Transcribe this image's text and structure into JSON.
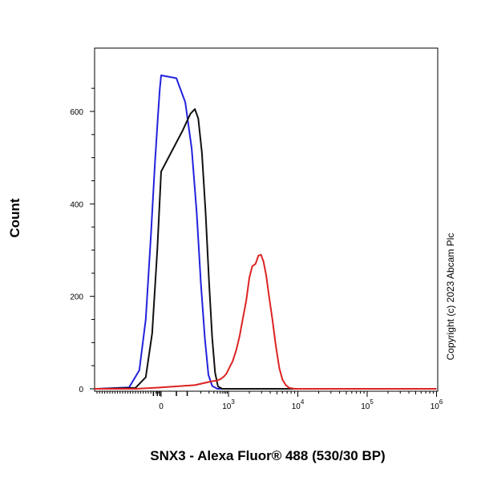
{
  "chart_data": {
    "type": "line",
    "title": "",
    "xlabel": "SNX3 - Alexa Fluor® 488 (530/30 BP)",
    "ylabel": "Count",
    "x_scale": "biexponential",
    "ylim": [
      0,
      720
    ],
    "y_ticks": [
      {
        "value": 0,
        "label": "0"
      },
      {
        "value": 200,
        "label": "200"
      },
      {
        "value": 400,
        "label": "400"
      },
      {
        "value": 600,
        "label": "600"
      }
    ],
    "x_ticks": [
      {
        "value": 0,
        "label_base": "0",
        "label_exp": ""
      },
      {
        "value": 1000,
        "label_base": "10",
        "label_exp": "3"
      },
      {
        "value": 10000,
        "label_base": "10",
        "label_exp": "4"
      },
      {
        "value": 100000,
        "label_base": "10",
        "label_exp": "5"
      },
      {
        "value": 1000000,
        "label_base": "10",
        "label_exp": "6"
      }
    ],
    "grid": false,
    "legend": "none",
    "series": [
      {
        "color": "#2222dd",
        "points": [
          [
            -1000,
            0
          ],
          [
            -500,
            0
          ],
          [
            -250,
            3
          ],
          [
            -170,
            40
          ],
          [
            -120,
            150
          ],
          [
            -80,
            330
          ],
          [
            -50,
            480
          ],
          [
            -25,
            590
          ],
          [
            -10,
            650
          ],
          [
            0,
            678
          ],
          [
            10,
            672
          ],
          [
            25,
            620
          ],
          [
            45,
            520
          ],
          [
            70,
            380
          ],
          [
            100,
            230
          ],
          [
            140,
            110
          ],
          [
            190,
            30
          ],
          [
            260,
            6
          ],
          [
            400,
            0
          ],
          [
            700,
            0
          ],
          [
            1000000,
            0
          ]
        ]
      },
      {
        "color": "#111111",
        "points": [
          [
            -1000,
            0
          ],
          [
            -500,
            0
          ],
          [
            -200,
            2
          ],
          [
            -120,
            25
          ],
          [
            -70,
            120
          ],
          [
            -30,
            300
          ],
          [
            0,
            470
          ],
          [
            20,
            560
          ],
          [
            40,
            595
          ],
          [
            60,
            605
          ],
          [
            80,
            585
          ],
          [
            110,
            510
          ],
          [
            150,
            380
          ],
          [
            200,
            230
          ],
          [
            260,
            110
          ],
          [
            330,
            35
          ],
          [
            420,
            5
          ],
          [
            600,
            0
          ],
          [
            1000000,
            0
          ]
        ]
      },
      {
        "color": "#dd2222",
        "points": [
          [
            -1000,
            0
          ],
          [
            -200,
            0
          ],
          [
            -50,
            2
          ],
          [
            0,
            3
          ],
          [
            60,
            8
          ],
          [
            120,
            12
          ],
          [
            200,
            15
          ],
          [
            300,
            17
          ],
          [
            400,
            18
          ],
          [
            550,
            22
          ],
          [
            700,
            27
          ],
          [
            850,
            33
          ],
          [
            1000,
            42
          ],
          [
            1150,
            60
          ],
          [
            1300,
            85
          ],
          [
            1450,
            115
          ],
          [
            1600,
            150
          ],
          [
            1800,
            190
          ],
          [
            2000,
            240
          ],
          [
            2200,
            265
          ],
          [
            2450,
            270
          ],
          [
            2700,
            288
          ],
          [
            2950,
            290
          ],
          [
            3200,
            275
          ],
          [
            3500,
            245
          ],
          [
            3850,
            200
          ],
          [
            4300,
            150
          ],
          [
            4800,
            95
          ],
          [
            5400,
            45
          ],
          [
            6000,
            20
          ],
          [
            6700,
            8
          ],
          [
            7500,
            2
          ],
          [
            9000,
            0
          ],
          [
            1000000,
            0
          ]
        ]
      }
    ],
    "annotations": [
      "Copyright (c) 2023 Abcam Plc"
    ]
  }
}
